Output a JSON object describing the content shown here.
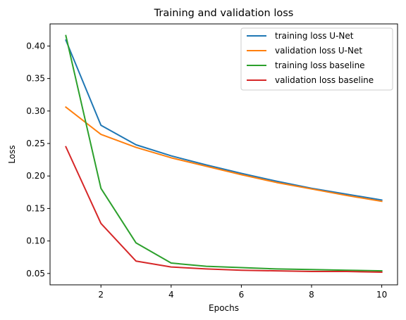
{
  "chart_data": {
    "type": "line",
    "title": "Training and validation loss",
    "xlabel": "Epochs",
    "ylabel": "Loss",
    "x": [
      1,
      2,
      3,
      4,
      5,
      6,
      7,
      8,
      9,
      10
    ],
    "xlim": [
      0.55,
      10.45
    ],
    "ylim": [
      0.0325,
      0.434
    ],
    "xticks": [
      2,
      4,
      6,
      8,
      10
    ],
    "yticks": [
      0.05,
      0.1,
      0.15,
      0.2,
      0.25,
      0.3,
      0.35,
      0.4
    ],
    "ytick_labels": [
      "0.05",
      "0.10",
      "0.15",
      "0.20",
      "0.25",
      "0.30",
      "0.35",
      "0.40"
    ],
    "grid": false,
    "legend_position": "top-right",
    "series": [
      {
        "name": "training loss U-Net",
        "color": "#1f77b4",
        "values": [
          0.409,
          0.278,
          0.248,
          0.231,
          0.217,
          0.204,
          0.192,
          0.181,
          0.172,
          0.163
        ]
      },
      {
        "name": "validation loss U-Net",
        "color": "#ff7f0e",
        "values": [
          0.306,
          0.264,
          0.244,
          0.228,
          0.215,
          0.202,
          0.19,
          0.18,
          0.17,
          0.161
        ]
      },
      {
        "name": "training loss baseline",
        "color": "#2ca02c",
        "values": [
          0.416,
          0.181,
          0.097,
          0.066,
          0.061,
          0.059,
          0.057,
          0.056,
          0.055,
          0.054
        ]
      },
      {
        "name": "validation loss baseline",
        "color": "#d62728",
        "values": [
          0.245,
          0.127,
          0.069,
          0.06,
          0.057,
          0.055,
          0.054,
          0.053,
          0.053,
          0.052
        ]
      }
    ]
  }
}
